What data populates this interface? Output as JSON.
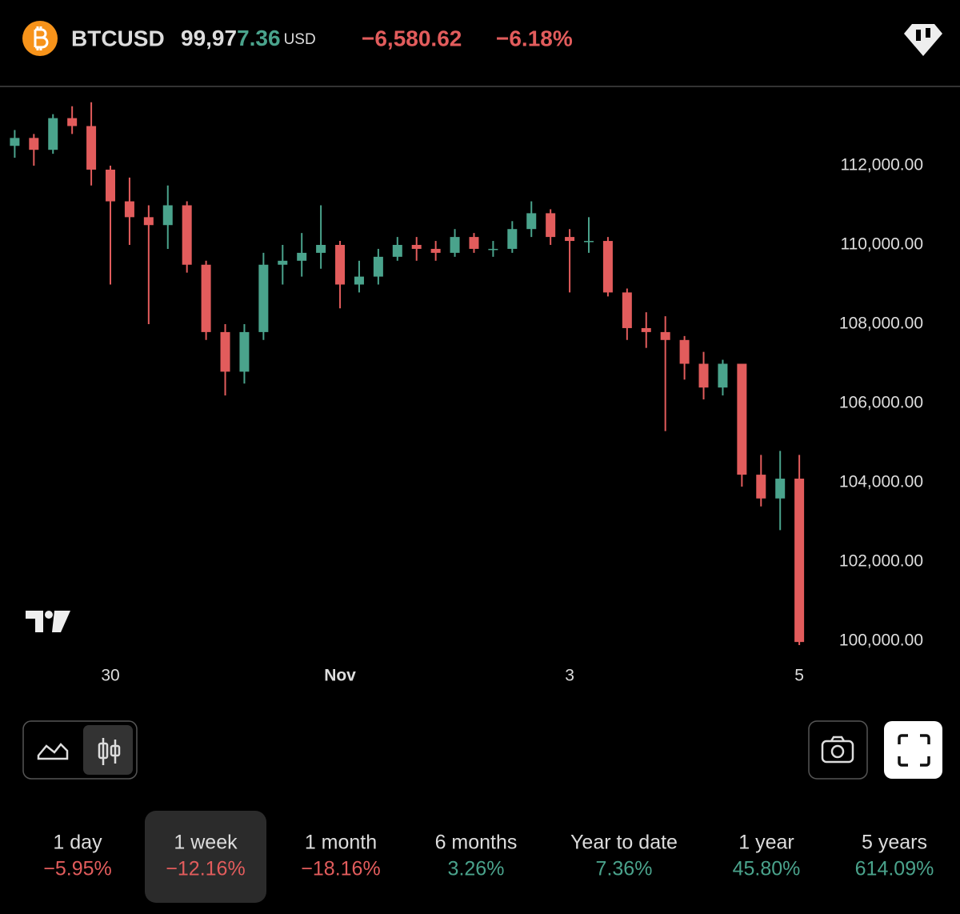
{
  "header": {
    "symbol": "BTCUSD",
    "price_main": "99,97",
    "price_tail": "7.36",
    "currency": "USD",
    "change": "−6,580.62",
    "change_percent": "−6.18%"
  },
  "chart_data": {
    "type": "candlestick",
    "categories": [
      null,
      null,
      null,
      null,
      null,
      "30",
      null,
      null,
      null,
      null,
      null,
      null,
      null,
      null,
      null,
      null,
      null,
      "Nov",
      null,
      null,
      null,
      null,
      null,
      null,
      null,
      null,
      null,
      null,
      null,
      "3",
      null,
      null,
      null,
      null,
      null,
      null,
      null,
      null,
      null,
      null,
      null,
      "5"
    ],
    "open": [
      112500,
      112700,
      112400,
      113200,
      113000,
      111900,
      111100,
      110700,
      110500,
      111000,
      109500,
      107800,
      106800,
      107800,
      109500,
      109600,
      109800,
      110000,
      109000,
      109200,
      109700,
      110000,
      109900,
      109800,
      110200,
      109900,
      109900,
      110400,
      110800,
      110200,
      110100,
      110100,
      108800,
      107900,
      107800,
      107600,
      107000,
      106400,
      107000,
      104200,
      103600,
      104100
    ],
    "high": [
      112900,
      112800,
      113300,
      113500,
      113600,
      112000,
      111700,
      111000,
      111500,
      111100,
      109600,
      108000,
      108000,
      109800,
      110000,
      110300,
      111000,
      110100,
      109600,
      109900,
      110200,
      110200,
      110100,
      110400,
      110300,
      110100,
      110600,
      111100,
      110900,
      110400,
      110700,
      110200,
      108900,
      108300,
      108200,
      107700,
      107300,
      107100,
      107000,
      104700,
      104800,
      104700
    ],
    "low": [
      112200,
      112000,
      112300,
      112800,
      111500,
      109000,
      110000,
      108000,
      109900,
      109300,
      107600,
      106200,
      106500,
      107600,
      109000,
      109200,
      109400,
      108400,
      108800,
      109000,
      109600,
      109600,
      109600,
      109700,
      109800,
      109700,
      109800,
      110200,
      110000,
      108800,
      109800,
      108700,
      107600,
      107400,
      105300,
      106600,
      106100,
      106200,
      103900,
      103400,
      102800,
      99900
    ],
    "close": [
      112700,
      112400,
      113200,
      113000,
      111900,
      111100,
      110700,
      110500,
      111000,
      109500,
      107800,
      106800,
      107800,
      109500,
      109600,
      109800,
      110000,
      109000,
      109200,
      109700,
      110000,
      109900,
      109800,
      110200,
      109900,
      109900,
      110400,
      110800,
      110200,
      110100,
      110100,
      108800,
      107900,
      107800,
      107600,
      107000,
      106400,
      107000,
      104200,
      103600,
      104100,
      99977
    ],
    "up_color": "#4aa38c",
    "down_color": "#e25c5c",
    "ylim": [
      99700,
      113800
    ],
    "yticks": [
      {
        "value": 100000,
        "label": "100,000.00"
      },
      {
        "value": 102000,
        "label": "102,000.00"
      },
      {
        "value": 104000,
        "label": "104,000.00"
      },
      {
        "value": 106000,
        "label": "106,000.00"
      },
      {
        "value": 108000,
        "label": "108,000.00"
      },
      {
        "value": 110000,
        "label": "110,000.00"
      },
      {
        "value": 112000,
        "label": "112,000.00"
      }
    ],
    "grid": false
  },
  "periods": [
    {
      "label": "1 day",
      "change": "−5.95%"
    },
    {
      "label": "1 week",
      "change": "−12.16%"
    },
    {
      "label": "1 month",
      "change": "−18.16%"
    },
    {
      "label": "6 months",
      "change": "3.26%"
    },
    {
      "label": "Year to date",
      "change": "7.36%"
    },
    {
      "label": "1 year",
      "change": "45.80%"
    },
    {
      "label": "5 years",
      "change": "614.09%"
    }
  ],
  "selected_period": 1
}
